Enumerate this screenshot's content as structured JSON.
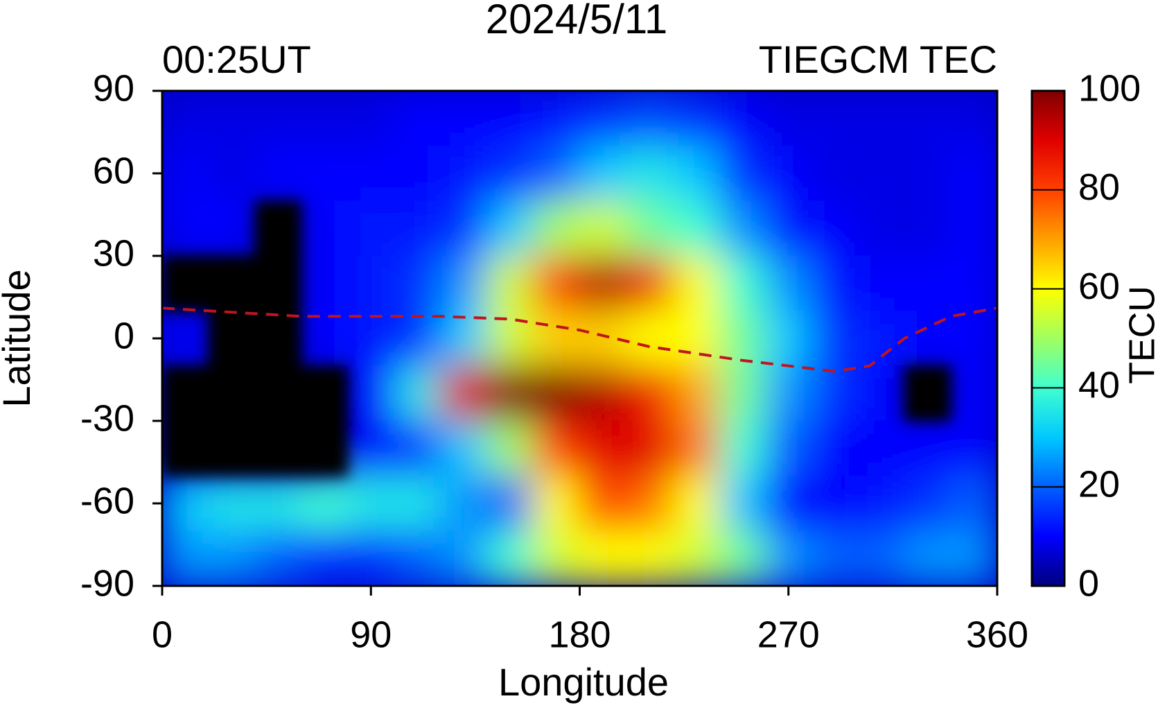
{
  "chart_data": {
    "type": "heatmap",
    "title": "2024/5/11",
    "subtitle_left": "00:25UT",
    "subtitle_right": "TIEGCM TEC",
    "x_label": "Longitude",
    "y_label": "Latitude",
    "xlim": [
      0,
      360
    ],
    "xticks": [
      0,
      90,
      180,
      270,
      360
    ],
    "ylim": [
      -90,
      90
    ],
    "yticks": [
      -90,
      -60,
      -30,
      0,
      30,
      60,
      90
    ],
    "x": [
      10,
      30,
      50,
      70,
      90,
      110,
      130,
      150,
      170,
      190,
      210,
      230,
      250,
      270,
      290,
      310,
      330,
      350
    ],
    "y": [
      80,
      60,
      40,
      20,
      0,
      -20,
      -40,
      -60,
      -80
    ],
    "values": [
      [
        8,
        8,
        8,
        8,
        8,
        10,
        10,
        10,
        12,
        15,
        18,
        15,
        10,
        8,
        8,
        8,
        8,
        8
      ],
      [
        10,
        8,
        10,
        10,
        10,
        10,
        12,
        15,
        20,
        30,
        35,
        30,
        15,
        10,
        8,
        8,
        8,
        10
      ],
      [
        10,
        10,
        null,
        10,
        12,
        12,
        15,
        30,
        50,
        55,
        45,
        40,
        25,
        12,
        10,
        8,
        8,
        10
      ],
      [
        null,
        null,
        null,
        10,
        12,
        15,
        25,
        55,
        80,
        95,
        85,
        60,
        40,
        25,
        12,
        10,
        10,
        10
      ],
      [
        10,
        null,
        null,
        10,
        12,
        15,
        30,
        55,
        65,
        65,
        60,
        60,
        45,
        30,
        15,
        12,
        10,
        10
      ],
      [
        null,
        null,
        null,
        null,
        10,
        35,
        90,
        100,
        100,
        95,
        85,
        70,
        45,
        25,
        15,
        10,
        null,
        10
      ],
      [
        null,
        null,
        null,
        null,
        10,
        15,
        30,
        50,
        80,
        90,
        90,
        75,
        40,
        20,
        10,
        10,
        10,
        10
      ],
      [
        30,
        35,
        35,
        40,
        35,
        35,
        25,
        20,
        60,
        80,
        75,
        60,
        30,
        10,
        10,
        12,
        15,
        20
      ],
      [
        25,
        25,
        20,
        15,
        15,
        20,
        25,
        40,
        55,
        60,
        60,
        55,
        45,
        25,
        20,
        20,
        25,
        25
      ]
    ],
    "null_color": "#000000",
    "colorbar": {
      "label": "TECU",
      "lim": [
        0,
        100
      ],
      "ticks": [
        0,
        20,
        40,
        60,
        80,
        100
      ],
      "colorscale": [
        "#00007f",
        "#0000ff",
        "#0060ff",
        "#00c8ff",
        "#40ffd0",
        "#a0ff60",
        "#ffff00",
        "#ffa000",
        "#ff4000",
        "#e00000",
        "#800000"
      ]
    },
    "overlay_line": {
      "color": "#c0141e",
      "x": [
        0,
        60,
        120,
        150,
        180,
        210,
        250,
        290,
        305,
        320,
        340,
        360
      ],
      "y": [
        11,
        8,
        8,
        7,
        3,
        -3,
        -8,
        -12,
        -10,
        0,
        8,
        11
      ]
    }
  }
}
